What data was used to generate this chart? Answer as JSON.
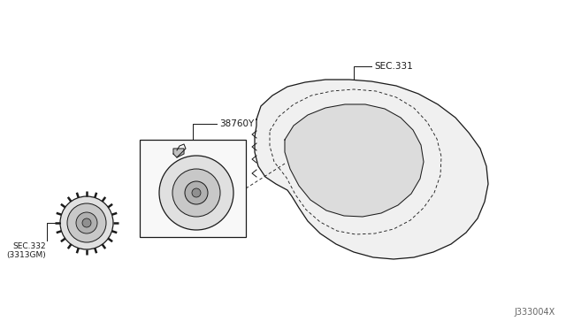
{
  "bg_color": "#ffffff",
  "line_color": "#1a1a1a",
  "gray_fill": "#e8e8e8",
  "light_fill": "#f0f0f0",
  "label_38760Y": "38760Y",
  "label_SEC331": "SEC.331",
  "label_SEC332": "SEC.332\n(3313GM)",
  "label_J333004X": "J333004X",
  "figsize": [
    6.4,
    3.72
  ],
  "dpi": 100
}
